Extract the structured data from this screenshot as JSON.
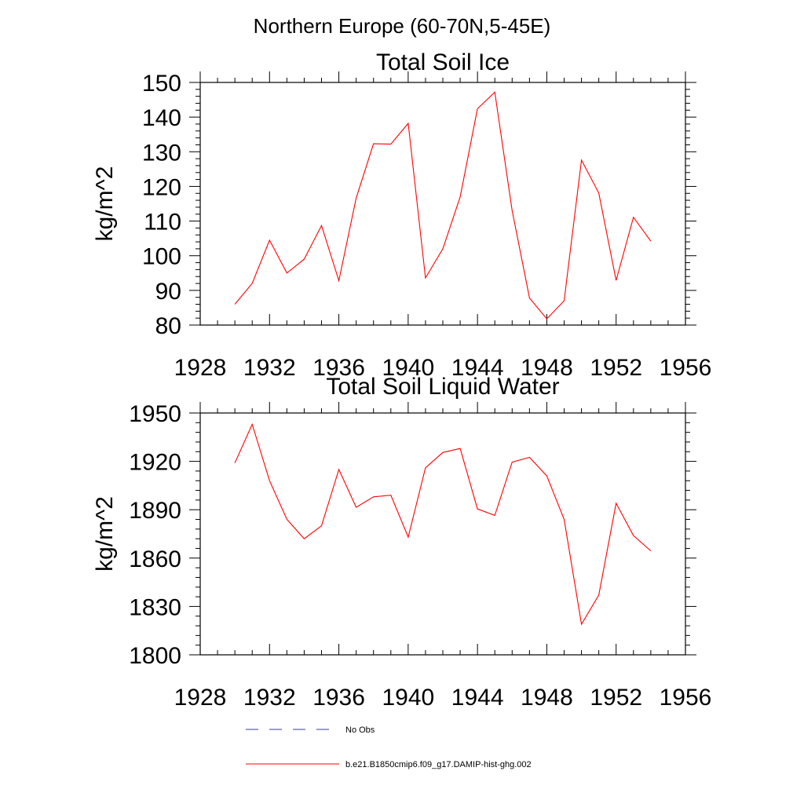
{
  "figure": {
    "title": "Northern Europe (60-70N,5-45E)"
  },
  "colors": {
    "model_line": "#ff0000",
    "obs_line": "#3b3f8f",
    "axis": "#000000"
  },
  "legend": {
    "entries": [
      {
        "label": "No Obs",
        "style": "dashed",
        "color": "#3b3f8f"
      },
      {
        "label": "b.e21.B1850cmip6.f09_g17.DAMIP-hist-ghg.002",
        "style": "solid",
        "color": "#ff0000"
      }
    ],
    "placement": "bottom"
  },
  "chart_data": [
    {
      "type": "line",
      "title": "Total Soil Ice",
      "xlabel": "",
      "ylabel": "kg/m^2",
      "xlim": [
        1928,
        1956
      ],
      "ylim": [
        80,
        150
      ],
      "xticks": [
        1928,
        1932,
        1936,
        1940,
        1944,
        1948,
        1952,
        1956
      ],
      "yticks": [
        80,
        90,
        100,
        110,
        120,
        130,
        140,
        150
      ],
      "grid": false,
      "series": [
        {
          "name": "b.e21.B1850cmip6.f09_g17.DAMIP-hist-ghg.002",
          "color": "#ff0000",
          "x": [
            1930,
            1931,
            1932,
            1933,
            1934,
            1935,
            1936,
            1937,
            1938,
            1939,
            1940,
            1941,
            1942,
            1943,
            1944,
            1945,
            1946,
            1947,
            1948,
            1949,
            1950,
            1951,
            1952,
            1953,
            1954
          ],
          "y": [
            86,
            92,
            104.5,
            95,
            99,
            108.7,
            92.8,
            116.6,
            132.3,
            132.2,
            138.2,
            93.6,
            102,
            117,
            142.4,
            147.2,
            113,
            87.8,
            81.8,
            87,
            127.6,
            118.1,
            92.9,
            111.1,
            104.2
          ]
        }
      ]
    },
    {
      "type": "line",
      "title": "Total Soil Liquid Water",
      "xlabel": "",
      "ylabel": "kg/m^2",
      "xlim": [
        1928,
        1956
      ],
      "ylim": [
        1800,
        1950
      ],
      "xticks": [
        1928,
        1932,
        1936,
        1940,
        1944,
        1948,
        1952,
        1956
      ],
      "yticks": [
        1800,
        1830,
        1860,
        1890,
        1920,
        1950
      ],
      "grid": false,
      "series": [
        {
          "name": "b.e21.B1850cmip6.f09_g17.DAMIP-hist-ghg.002",
          "color": "#ff0000",
          "x": [
            1930,
            1931,
            1932,
            1933,
            1934,
            1935,
            1936,
            1937,
            1938,
            1939,
            1940,
            1941,
            1942,
            1943,
            1944,
            1945,
            1946,
            1947,
            1948,
            1949,
            1950,
            1951,
            1952,
            1953,
            1954
          ],
          "y": [
            1919,
            1943,
            1908,
            1884,
            1872,
            1880,
            1915,
            1891.5,
            1898,
            1899,
            1873,
            1916,
            1925.5,
            1928,
            1890.5,
            1886.5,
            1919.5,
            1922.5,
            1911,
            1884,
            1819,
            1837,
            1894,
            1874,
            1864.5
          ]
        }
      ]
    }
  ]
}
